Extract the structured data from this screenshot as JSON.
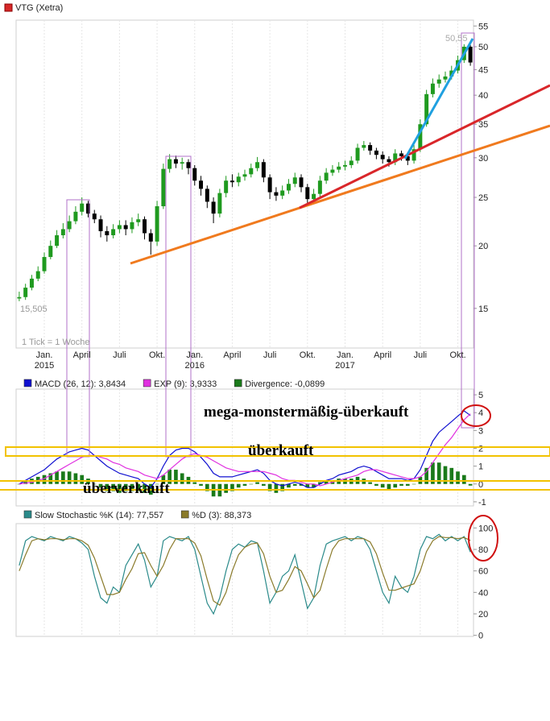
{
  "chart_data": [
    {
      "type": "candlestick",
      "title": "VTG (Xetra)",
      "color": "#d62728",
      "up_color": "#1f9a1f",
      "down_color": "#000000",
      "log_scale": true,
      "grid": true,
      "categories": [
        null,
        null,
        null,
        null,
        "Jan. 2015",
        null,
        null,
        null,
        null,
        null,
        "April",
        null,
        null,
        null,
        null,
        null,
        "Juli",
        null,
        null,
        null,
        null,
        null,
        "Okt.",
        null,
        null,
        null,
        null,
        null,
        "Jan. 2016",
        null,
        null,
        null,
        null,
        null,
        "April",
        null,
        null,
        null,
        null,
        null,
        "Juli",
        null,
        null,
        null,
        null,
        null,
        "Okt.",
        null,
        null,
        null,
        null,
        null,
        "Jan. 2017",
        null,
        null,
        null,
        null,
        null,
        "April",
        null,
        null,
        null,
        null,
        null,
        "Juli",
        null,
        null,
        null,
        null,
        null,
        "Okt.",
        null,
        null
      ],
      "open": [
        15.7,
        15.8,
        16.5,
        17.2,
        17.8,
        19.0,
        20.0,
        21.0,
        21.6,
        22.4,
        23.4,
        24.3,
        23.2,
        22.6,
        21.4,
        21.0,
        21.6,
        22.0,
        21.6,
        22.3,
        22.6,
        21.2,
        20.4,
        24.0,
        28.5,
        29.8,
        29.2,
        29.4,
        28.6,
        27.0,
        26.0,
        24.5,
        23.2,
        25.5,
        27.0,
        26.8,
        27.5,
        27.8,
        28.6,
        29.4,
        27.4,
        25.6,
        25.2,
        25.8,
        26.6,
        27.4,
        26.2,
        24.8,
        25.4,
        27.0,
        28.0,
        28.4,
        28.8,
        29.0,
        29.6,
        31.4,
        31.8,
        31.0,
        30.4,
        29.8,
        29.4,
        30.6,
        30.2,
        29.6,
        31.2,
        35.0,
        40.2,
        42.2,
        43.0,
        43.6,
        44.8,
        47.0,
        50.0
      ],
      "high": [
        16.2,
        16.8,
        17.5,
        18.2,
        19.4,
        20.5,
        21.5,
        22.2,
        23.0,
        24.0,
        25.0,
        24.6,
        23.6,
        23.0,
        21.9,
        22.1,
        22.5,
        22.5,
        22.8,
        23.2,
        22.9,
        21.6,
        24.6,
        29.2,
        30.5,
        30.3,
        30.0,
        29.8,
        29.0,
        27.6,
        26.4,
        25.0,
        26.0,
        27.6,
        27.8,
        28.0,
        28.4,
        29.2,
        30.1,
        29.8,
        27.8,
        26.2,
        26.4,
        27.2,
        28.0,
        27.8,
        26.6,
        26.0,
        27.6,
        28.6,
        29.0,
        29.4,
        29.6,
        30.2,
        32.0,
        32.4,
        32.2,
        31.4,
        30.9,
        30.2,
        31.2,
        31.0,
        30.6,
        31.8,
        35.8,
        41.0,
        43.2,
        44.0,
        44.6,
        45.8,
        48.0,
        50.55,
        50.4
      ],
      "low": [
        15.505,
        15.6,
        16.3,
        17.0,
        17.6,
        18.8,
        19.8,
        20.7,
        21.3,
        22.1,
        23.0,
        22.8,
        22.2,
        20.8,
        20.4,
        20.7,
        21.2,
        21.0,
        21.2,
        21.9,
        20.6,
        19.2,
        20.0,
        23.7,
        28.0,
        28.6,
        28.4,
        27.8,
        26.4,
        25.2,
        23.8,
        22.2,
        22.8,
        25.0,
        26.2,
        26.3,
        27.0,
        27.4,
        28.2,
        26.8,
        24.8,
        24.6,
        24.8,
        25.4,
        26.2,
        25.6,
        24.0,
        24.3,
        25.0,
        26.6,
        27.6,
        28.0,
        28.3,
        28.6,
        29.2,
        31.0,
        30.4,
        29.8,
        29.2,
        28.8,
        29.0,
        29.6,
        29.0,
        29.2,
        30.8,
        34.6,
        39.6,
        41.4,
        42.4,
        43.0,
        44.2,
        46.4,
        45.8
      ],
      "close": [
        15.8,
        16.5,
        17.2,
        17.8,
        19.0,
        20.0,
        21.0,
        21.6,
        22.4,
        23.4,
        24.3,
        23.2,
        22.6,
        21.4,
        21.0,
        21.6,
        22.0,
        21.6,
        22.3,
        22.6,
        21.2,
        20.4,
        24.0,
        28.5,
        29.8,
        29.2,
        29.4,
        28.6,
        27.0,
        26.0,
        24.5,
        23.2,
        25.5,
        27.0,
        26.8,
        27.5,
        27.8,
        28.6,
        29.4,
        27.4,
        25.6,
        25.2,
        25.8,
        26.6,
        27.4,
        26.2,
        24.8,
        25.4,
        27.0,
        28.0,
        28.4,
        28.8,
        29.0,
        29.6,
        31.4,
        31.8,
        31.0,
        30.4,
        29.8,
        29.4,
        30.6,
        30.2,
        29.6,
        31.2,
        35.0,
        40.2,
        42.2,
        43.0,
        43.6,
        44.8,
        47.0,
        50.0,
        46.5
      ],
      "ylim": [
        12.5,
        56.5
      ],
      "yticks": [
        15,
        20,
        25,
        30,
        35,
        40,
        45,
        50,
        55
      ],
      "annotations": [
        "50,55",
        "15,505",
        "1 Tick = 1 Woche"
      ]
    },
    {
      "type": "line",
      "grid": true,
      "series": [
        {
          "name": "MACD (26, 12): 3,8434",
          "color": "#1010d0",
          "style": "line",
          "values": [
            0.0,
            0.2,
            0.4,
            0.6,
            0.8,
            1.1,
            1.4,
            1.6,
            1.8,
            1.9,
            2.0,
            1.9,
            1.6,
            1.3,
            1.0,
            0.8,
            0.6,
            0.5,
            0.4,
            0.3,
            0.0,
            -0.2,
            0.3,
            1.0,
            1.6,
            1.9,
            2.0,
            2.0,
            1.8,
            1.5,
            1.1,
            0.6,
            0.4,
            0.4,
            0.4,
            0.5,
            0.6,
            0.7,
            0.8,
            0.6,
            0.2,
            0.0,
            -0.1,
            0.0,
            0.1,
            0.0,
            -0.2,
            -0.2,
            0.0,
            0.2,
            0.3,
            0.5,
            0.6,
            0.7,
            0.9,
            1.0,
            0.9,
            0.7,
            0.5,
            0.3,
            0.3,
            0.3,
            0.2,
            0.3,
            0.8,
            1.6,
            2.4,
            2.9,
            3.2,
            3.5,
            3.8,
            4.1,
            3.8434
          ]
        },
        {
          "name": "EXP (9): 3,9333",
          "color": "#e030e0",
          "style": "line",
          "values": [
            0.0,
            0.05,
            0.1,
            0.2,
            0.3,
            0.5,
            0.7,
            0.9,
            1.1,
            1.3,
            1.5,
            1.6,
            1.6,
            1.5,
            1.4,
            1.2,
            1.1,
            0.9,
            0.8,
            0.7,
            0.5,
            0.4,
            0.3,
            0.5,
            0.8,
            1.1,
            1.4,
            1.6,
            1.7,
            1.6,
            1.5,
            1.3,
            1.1,
            0.9,
            0.8,
            0.7,
            0.7,
            0.7,
            0.7,
            0.7,
            0.6,
            0.5,
            0.3,
            0.2,
            0.2,
            0.1,
            0.0,
            0.0,
            -0.1,
            0.0,
            0.1,
            0.2,
            0.3,
            0.4,
            0.5,
            0.7,
            0.8,
            0.8,
            0.7,
            0.6,
            0.5,
            0.4,
            0.3,
            0.3,
            0.4,
            0.7,
            1.2,
            1.7,
            2.2,
            2.6,
            3.1,
            3.6,
            3.9333
          ]
        },
        {
          "name": "Divergence: -0,0899",
          "color": "#1a7a1a",
          "style": "bar",
          "values": [
            0,
            0.15,
            0.3,
            0.4,
            0.5,
            0.6,
            0.7,
            0.7,
            0.7,
            0.6,
            0.5,
            0.3,
            0,
            -0.2,
            -0.4,
            -0.4,
            -0.5,
            -0.4,
            -0.4,
            -0.4,
            -0.5,
            -0.6,
            0,
            0.5,
            0.8,
            0.8,
            0.6,
            0.4,
            0.1,
            -0.1,
            -0.4,
            -0.7,
            -0.7,
            -0.5,
            -0.4,
            -0.2,
            -0.1,
            0,
            0.1,
            -0.1,
            -0.4,
            -0.5,
            -0.4,
            -0.2,
            -0.1,
            -0.1,
            -0.2,
            -0.2,
            0.1,
            0.2,
            0.2,
            0.3,
            0.3,
            0.3,
            0.4,
            0.3,
            0.1,
            -0.1,
            -0.2,
            -0.3,
            -0.2,
            -0.1,
            -0.1,
            0,
            0.4,
            0.9,
            1.2,
            1.2,
            1.0,
            0.9,
            0.7,
            0.5,
            -0.0899
          ]
        }
      ],
      "ylim": [
        -1.23,
        5.32
      ],
      "yticks": [
        -1,
        0,
        1,
        2,
        3,
        4,
        5
      ],
      "annotations": [
        "mega-monstermäßig-überkauft",
        "überkauft",
        "überverkauft"
      ]
    },
    {
      "type": "line",
      "grid": true,
      "series": [
        {
          "name": "Slow Stochastic %K (14): 77,557",
          "color": "#2a8a8a",
          "style": "line",
          "values": [
            65,
            88,
            92,
            90,
            88,
            92,
            90,
            88,
            92,
            90,
            86,
            80,
            55,
            35,
            30,
            45,
            40,
            65,
            75,
            85,
            70,
            45,
            55,
            88,
            92,
            90,
            88,
            92,
            80,
            55,
            30,
            20,
            35,
            60,
            80,
            85,
            82,
            88,
            86,
            60,
            30,
            40,
            55,
            60,
            75,
            50,
            25,
            35,
            65,
            85,
            88,
            90,
            92,
            88,
            92,
            90,
            80,
            60,
            40,
            30,
            55,
            45,
            40,
            55,
            80,
            92,
            90,
            94,
            88,
            92,
            88,
            92,
            77.557
          ]
        },
        {
          "name": "%D (3): 88,373",
          "color": "#8a7a2a",
          "style": "line",
          "values": [
            60,
            75,
            88,
            90,
            89,
            90,
            90,
            89,
            90,
            90,
            88,
            84,
            72,
            55,
            38,
            38,
            40,
            52,
            62,
            76,
            77,
            65,
            55,
            65,
            80,
            90,
            90,
            90,
            86,
            74,
            52,
            32,
            28,
            40,
            60,
            75,
            82,
            85,
            86,
            76,
            55,
            40,
            42,
            52,
            64,
            60,
            48,
            35,
            42,
            62,
            80,
            88,
            90,
            90,
            90,
            90,
            87,
            76,
            58,
            42,
            42,
            44,
            46,
            48,
            60,
            78,
            88,
            92,
            91,
            91,
            90,
            91,
            88.373
          ]
        }
      ],
      "ylim": [
        -1,
        104
      ],
      "yticks": [
        0,
        20,
        40,
        60,
        80,
        100
      ]
    }
  ]
}
